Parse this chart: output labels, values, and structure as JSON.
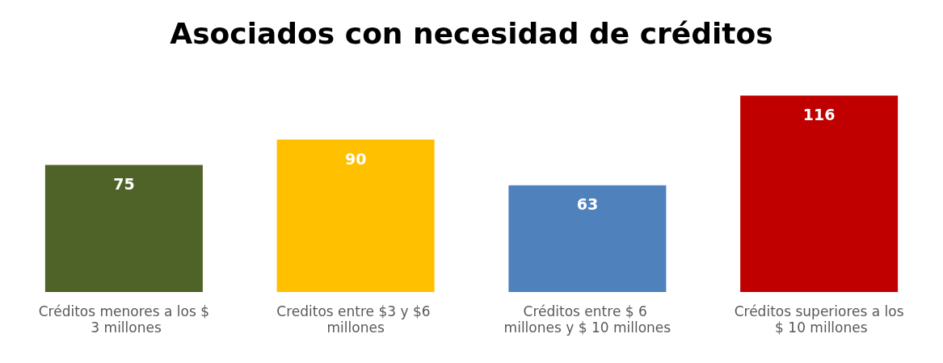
{
  "chart_data": {
    "type": "bar",
    "title": "Asociados con necesidad de créditos",
    "categories": [
      "Créditos menores a los $ 3 millones",
      "Creditos entre $3 y $6 millones",
      "Créditos entre $ 6 millones y $ 10 millones",
      "Créditos superiores a los $ 10 millones"
    ],
    "values": [
      75,
      90,
      63,
      116
    ],
    "colors": [
      "#4f6228",
      "#ffc000",
      "#4f81bd",
      "#c00000"
    ],
    "data_labels": true
  }
}
